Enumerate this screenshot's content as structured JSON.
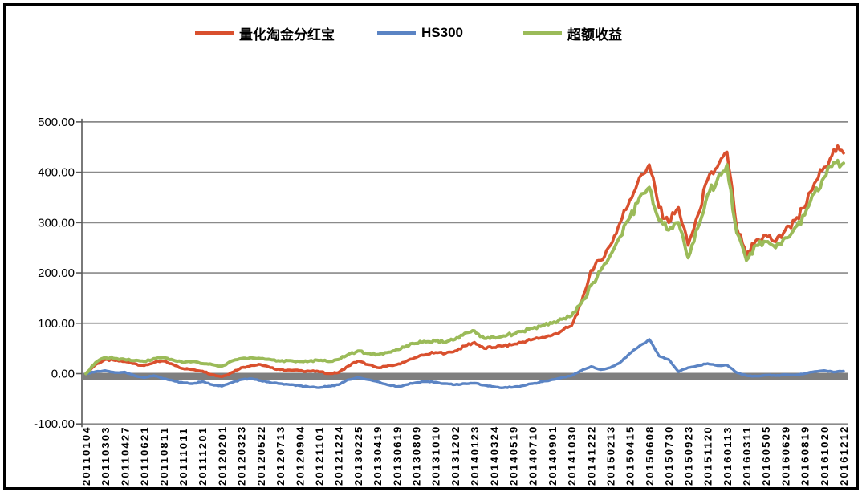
{
  "figure": {
    "background": "#FFFFFF",
    "border_color": "#000000"
  },
  "chart_data": {
    "type": "line",
    "title": "",
    "xlabel": "",
    "ylabel": "",
    "grid": true,
    "legend_position": "top",
    "ylim": [
      -100,
      500
    ],
    "y_ticks": [
      "500.00",
      "400.00",
      "300.00",
      "200.00",
      "100.00",
      "0.00",
      "-100.00"
    ],
    "y_tick_values": [
      500,
      400,
      300,
      200,
      100,
      0,
      -100
    ],
    "grid_color": "#8A8A8A",
    "axis_color": "#595959",
    "zero_band_color": "#7F7F7F",
    "points_per_category_gap": 2,
    "categories": [
      "20110104",
      "20110303",
      "20110427",
      "20110621",
      "20110811",
      "20111011",
      "20111201",
      "20120201",
      "20120323",
      "20120522",
      "20120713",
      "20120904",
      "20121101",
      "20121224",
      "20130225",
      "20130419",
      "20130619",
      "20130809",
      "20131010",
      "20131202",
      "20140123",
      "20140324",
      "20140519",
      "20140710",
      "20140901",
      "20141030",
      "20141222",
      "20150213",
      "20150415",
      "20150608",
      "20150730",
      "20150923",
      "20151120",
      "20160113",
      "20160311",
      "20160505",
      "20160629",
      "20160819",
      "20161020",
      "20161212"
    ],
    "series": [
      {
        "name": "量化淘金分红宝",
        "color": "#D9502E",
        "values": [
          0,
          18,
          28,
          26,
          24,
          20,
          16,
          22,
          25,
          18,
          10,
          8,
          5,
          -2,
          -6,
          2,
          12,
          16,
          18,
          12,
          8,
          7,
          6,
          5,
          4,
          0,
          2,
          15,
          25,
          18,
          12,
          15,
          18,
          25,
          32,
          38,
          42,
          40,
          45,
          55,
          62,
          50,
          52,
          55,
          58,
          63,
          68,
          72,
          76,
          85,
          95,
          140,
          205,
          225,
          255,
          300,
          345,
          390,
          415,
          330,
          300,
          330,
          255,
          315,
          385,
          410,
          440,
          290,
          235,
          265,
          275,
          262,
          285,
          305,
          330,
          378,
          410,
          445,
          438
        ]
      },
      {
        "name": "HS300",
        "color": "#5B84C4",
        "values": [
          0,
          4,
          6,
          2,
          3,
          -4,
          -8,
          -4,
          -10,
          -14,
          -18,
          -20,
          -16,
          -22,
          -25,
          -18,
          -12,
          -10,
          -14,
          -18,
          -20,
          -22,
          -24,
          -27,
          -28,
          -25,
          -22,
          -12,
          -8,
          -12,
          -16,
          -22,
          -26,
          -22,
          -18,
          -16,
          -17,
          -20,
          -22,
          -20,
          -19,
          -23,
          -26,
          -28,
          -27,
          -24,
          -20,
          -16,
          -12,
          -8,
          -4,
          6,
          14,
          8,
          12,
          22,
          40,
          55,
          68,
          35,
          28,
          4,
          12,
          16,
          20,
          16,
          17,
          2,
          -4,
          -5,
          -3,
          -4,
          -2,
          -3,
          0,
          4,
          6,
          3,
          5
        ]
      },
      {
        "name": "超额收益",
        "color": "#9BBB59",
        "values": [
          0,
          22,
          32,
          30,
          28,
          26,
          24,
          30,
          32,
          27,
          22,
          24,
          20,
          18,
          15,
          25,
          30,
          32,
          30,
          28,
          25,
          26,
          24,
          25,
          26,
          24,
          28,
          38,
          45,
          40,
          38,
          42,
          48,
          55,
          60,
          63,
          65,
          62,
          68,
          80,
          85,
          70,
          72,
          75,
          78,
          84,
          90,
          95,
          100,
          108,
          115,
          140,
          175,
          205,
          235,
          272,
          310,
          350,
          370,
          305,
          285,
          300,
          230,
          290,
          355,
          385,
          415,
          280,
          225,
          255,
          262,
          250,
          270,
          290,
          315,
          358,
          390,
          420,
          418
        ]
      }
    ]
  }
}
